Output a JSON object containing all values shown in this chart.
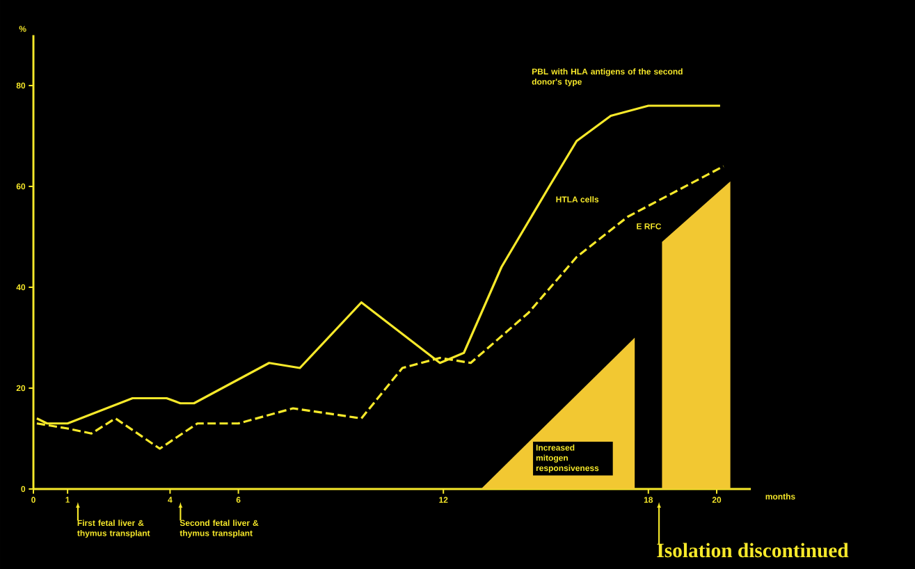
{
  "chart_data": {
    "type": "line",
    "xlabel": "months",
    "ylabel": "%",
    "xlim": [
      0,
      21
    ],
    "ylim": [
      0,
      90
    ],
    "xticks": [
      0,
      1,
      4,
      6,
      12,
      18,
      20
    ],
    "yticks": [
      0,
      20,
      40,
      60,
      80
    ],
    "series": [
      {
        "name": "HTLA cells",
        "line_style": "solid",
        "color": "#f7e92a",
        "x": [
          0.1,
          0.4,
          1.0,
          2.9,
          3.9,
          4.3,
          4.7,
          6.9,
          7.8,
          9.6,
          11.9,
          12.6,
          13.7,
          15.1,
          15.9,
          16.9,
          18.0,
          20.1
        ],
        "values": [
          14,
          13,
          13,
          18,
          18,
          17,
          17,
          25,
          24,
          37,
          25,
          27,
          44,
          60,
          69,
          74,
          76,
          76
        ]
      },
      {
        "name": "E RFC",
        "line_style": "dashed",
        "color": "#f7e92a",
        "x": [
          0.1,
          1.0,
          1.7,
          2.4,
          3.7,
          4.8,
          6.0,
          7.6,
          9.6,
          10.8,
          11.9,
          12.8,
          14.5,
          15.9,
          17.4,
          20.2
        ],
        "values": [
          13,
          12,
          11,
          14,
          8,
          13,
          13,
          16,
          14,
          24,
          26,
          25,
          35,
          46,
          54,
          64
        ]
      },
      {
        "type": "area",
        "color": "#f2c832",
        "x": [
          13.1,
          17.6,
          17.6
        ],
        "values": [
          0,
          30,
          0
        ]
      },
      {
        "type": "area",
        "color": "#f2c832",
        "x": [
          18.4,
          18.4,
          20.4,
          20.4
        ],
        "values": [
          0,
          49,
          61,
          0
        ]
      }
    ],
    "annotations": [
      "PBL with HLA antigens of the second donor's type",
      "Increased mitogen responsiveness",
      "First fetal liver & thymus transplant",
      "Second fetal liver & thymus transplant",
      "Isolation discontinued"
    ]
  }
}
